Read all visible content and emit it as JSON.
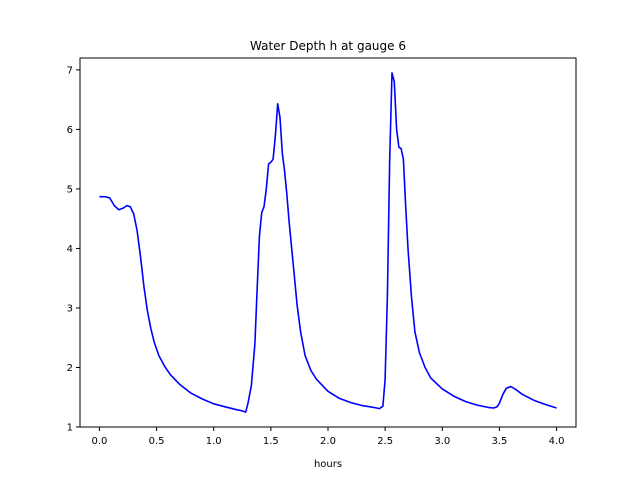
{
  "chart_data": {
    "type": "line",
    "title": "Water Depth h at gauge 6",
    "xlabel": "hours",
    "ylabel": "",
    "xlim": [
      -0.17,
      4.17
    ],
    "ylim": [
      1.0,
      7.2
    ],
    "xticks": [
      0.0,
      0.5,
      1.0,
      1.5,
      2.0,
      2.5,
      3.0,
      3.5,
      4.0
    ],
    "xtick_labels": [
      "0.0",
      "0.5",
      "1.0",
      "1.5",
      "2.0",
      "2.5",
      "3.0",
      "3.5",
      "4.0"
    ],
    "yticks": [
      1,
      2,
      3,
      4,
      5,
      6,
      7
    ],
    "ytick_labels": [
      "1",
      "2",
      "3",
      "4",
      "5",
      "6",
      "7"
    ],
    "grid": false,
    "series": [
      {
        "color": "#0000ff",
        "x": [
          0.0,
          0.05,
          0.09,
          0.13,
          0.17,
          0.21,
          0.24,
          0.27,
          0.3,
          0.33,
          0.36,
          0.39,
          0.42,
          0.45,
          0.48,
          0.52,
          0.57,
          0.62,
          0.7,
          0.8,
          0.9,
          1.0,
          1.1,
          1.2,
          1.25,
          1.28,
          1.3,
          1.33,
          1.36,
          1.38,
          1.4,
          1.42,
          1.44,
          1.46,
          1.48,
          1.5,
          1.52,
          1.54,
          1.56,
          1.58,
          1.6,
          1.62,
          1.64,
          1.66,
          1.68,
          1.7,
          1.73,
          1.76,
          1.8,
          1.85,
          1.9,
          2.0,
          2.1,
          2.2,
          2.3,
          2.4,
          2.45,
          2.48,
          2.5,
          2.52,
          2.54,
          2.56,
          2.58,
          2.6,
          2.62,
          2.64,
          2.66,
          2.68,
          2.7,
          2.73,
          2.76,
          2.8,
          2.85,
          2.9,
          3.0,
          3.1,
          3.2,
          3.3,
          3.4,
          3.45,
          3.48,
          3.5,
          3.53,
          3.56,
          3.6,
          3.65,
          3.7,
          3.8,
          3.9,
          4.0
        ],
        "y": [
          4.87,
          4.87,
          4.85,
          4.72,
          4.65,
          4.68,
          4.72,
          4.7,
          4.58,
          4.3,
          3.85,
          3.35,
          2.95,
          2.65,
          2.42,
          2.2,
          2.02,
          1.88,
          1.72,
          1.57,
          1.47,
          1.39,
          1.34,
          1.29,
          1.27,
          1.25,
          1.4,
          1.7,
          2.4,
          3.3,
          4.2,
          4.6,
          4.7,
          5.0,
          5.42,
          5.45,
          5.5,
          5.9,
          6.43,
          6.2,
          5.6,
          5.3,
          4.9,
          4.45,
          4.05,
          3.65,
          3.05,
          2.6,
          2.2,
          1.95,
          1.8,
          1.6,
          1.48,
          1.41,
          1.36,
          1.33,
          1.31,
          1.35,
          1.8,
          3.2,
          5.5,
          6.95,
          6.8,
          6.0,
          5.7,
          5.68,
          5.5,
          4.7,
          4.0,
          3.2,
          2.6,
          2.25,
          2.0,
          1.82,
          1.64,
          1.52,
          1.43,
          1.37,
          1.33,
          1.32,
          1.34,
          1.4,
          1.55,
          1.65,
          1.68,
          1.62,
          1.55,
          1.45,
          1.38,
          1.32
        ]
      }
    ]
  }
}
